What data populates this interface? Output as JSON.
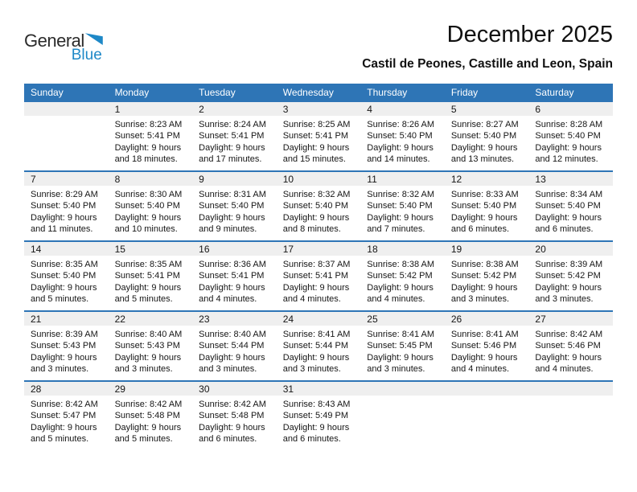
{
  "logo": {
    "word1": "General",
    "word2": "Blue"
  },
  "header": {
    "title": "December 2025",
    "subtitle": "Castil de Peones, Castille and Leon, Spain"
  },
  "colors": {
    "header_bar": "#2E75B6",
    "week_divider": "#2E75B6",
    "day_strip": "#EFEFEF",
    "logo_blue": "#1E88C7",
    "text": "#1A1A1A"
  },
  "calendar": {
    "day_headers": [
      "Sunday",
      "Monday",
      "Tuesday",
      "Wednesday",
      "Thursday",
      "Friday",
      "Saturday"
    ],
    "weeks": [
      [
        null,
        {
          "day": "1",
          "lines": [
            "Sunrise: 8:23 AM",
            "Sunset: 5:41 PM",
            "Daylight: 9 hours",
            "and 18 minutes."
          ]
        },
        {
          "day": "2",
          "lines": [
            "Sunrise: 8:24 AM",
            "Sunset: 5:41 PM",
            "Daylight: 9 hours",
            "and 17 minutes."
          ]
        },
        {
          "day": "3",
          "lines": [
            "Sunrise: 8:25 AM",
            "Sunset: 5:41 PM",
            "Daylight: 9 hours",
            "and 15 minutes."
          ]
        },
        {
          "day": "4",
          "lines": [
            "Sunrise: 8:26 AM",
            "Sunset: 5:40 PM",
            "Daylight: 9 hours",
            "and 14 minutes."
          ]
        },
        {
          "day": "5",
          "lines": [
            "Sunrise: 8:27 AM",
            "Sunset: 5:40 PM",
            "Daylight: 9 hours",
            "and 13 minutes."
          ]
        },
        {
          "day": "6",
          "lines": [
            "Sunrise: 8:28 AM",
            "Sunset: 5:40 PM",
            "Daylight: 9 hours",
            "and 12 minutes."
          ]
        }
      ],
      [
        {
          "day": "7",
          "lines": [
            "Sunrise: 8:29 AM",
            "Sunset: 5:40 PM",
            "Daylight: 9 hours",
            "and 11 minutes."
          ]
        },
        {
          "day": "8",
          "lines": [
            "Sunrise: 8:30 AM",
            "Sunset: 5:40 PM",
            "Daylight: 9 hours",
            "and 10 minutes."
          ]
        },
        {
          "day": "9",
          "lines": [
            "Sunrise: 8:31 AM",
            "Sunset: 5:40 PM",
            "Daylight: 9 hours",
            "and 9 minutes."
          ]
        },
        {
          "day": "10",
          "lines": [
            "Sunrise: 8:32 AM",
            "Sunset: 5:40 PM",
            "Daylight: 9 hours",
            "and 8 minutes."
          ]
        },
        {
          "day": "11",
          "lines": [
            "Sunrise: 8:32 AM",
            "Sunset: 5:40 PM",
            "Daylight: 9 hours",
            "and 7 minutes."
          ]
        },
        {
          "day": "12",
          "lines": [
            "Sunrise: 8:33 AM",
            "Sunset: 5:40 PM",
            "Daylight: 9 hours",
            "and 6 minutes."
          ]
        },
        {
          "day": "13",
          "lines": [
            "Sunrise: 8:34 AM",
            "Sunset: 5:40 PM",
            "Daylight: 9 hours",
            "and 6 minutes."
          ]
        }
      ],
      [
        {
          "day": "14",
          "lines": [
            "Sunrise: 8:35 AM",
            "Sunset: 5:40 PM",
            "Daylight: 9 hours",
            "and 5 minutes."
          ]
        },
        {
          "day": "15",
          "lines": [
            "Sunrise: 8:35 AM",
            "Sunset: 5:41 PM",
            "Daylight: 9 hours",
            "and 5 minutes."
          ]
        },
        {
          "day": "16",
          "lines": [
            "Sunrise: 8:36 AM",
            "Sunset: 5:41 PM",
            "Daylight: 9 hours",
            "and 4 minutes."
          ]
        },
        {
          "day": "17",
          "lines": [
            "Sunrise: 8:37 AM",
            "Sunset: 5:41 PM",
            "Daylight: 9 hours",
            "and 4 minutes."
          ]
        },
        {
          "day": "18",
          "lines": [
            "Sunrise: 8:38 AM",
            "Sunset: 5:42 PM",
            "Daylight: 9 hours",
            "and 4 minutes."
          ]
        },
        {
          "day": "19",
          "lines": [
            "Sunrise: 8:38 AM",
            "Sunset: 5:42 PM",
            "Daylight: 9 hours",
            "and 3 minutes."
          ]
        },
        {
          "day": "20",
          "lines": [
            "Sunrise: 8:39 AM",
            "Sunset: 5:42 PM",
            "Daylight: 9 hours",
            "and 3 minutes."
          ]
        }
      ],
      [
        {
          "day": "21",
          "lines": [
            "Sunrise: 8:39 AM",
            "Sunset: 5:43 PM",
            "Daylight: 9 hours",
            "and 3 minutes."
          ]
        },
        {
          "day": "22",
          "lines": [
            "Sunrise: 8:40 AM",
            "Sunset: 5:43 PM",
            "Daylight: 9 hours",
            "and 3 minutes."
          ]
        },
        {
          "day": "23",
          "lines": [
            "Sunrise: 8:40 AM",
            "Sunset: 5:44 PM",
            "Daylight: 9 hours",
            "and 3 minutes."
          ]
        },
        {
          "day": "24",
          "lines": [
            "Sunrise: 8:41 AM",
            "Sunset: 5:44 PM",
            "Daylight: 9 hours",
            "and 3 minutes."
          ]
        },
        {
          "day": "25",
          "lines": [
            "Sunrise: 8:41 AM",
            "Sunset: 5:45 PM",
            "Daylight: 9 hours",
            "and 3 minutes."
          ]
        },
        {
          "day": "26",
          "lines": [
            "Sunrise: 8:41 AM",
            "Sunset: 5:46 PM",
            "Daylight: 9 hours",
            "and 4 minutes."
          ]
        },
        {
          "day": "27",
          "lines": [
            "Sunrise: 8:42 AM",
            "Sunset: 5:46 PM",
            "Daylight: 9 hours",
            "and 4 minutes."
          ]
        }
      ],
      [
        {
          "day": "28",
          "lines": [
            "Sunrise: 8:42 AM",
            "Sunset: 5:47 PM",
            "Daylight: 9 hours",
            "and 5 minutes."
          ]
        },
        {
          "day": "29",
          "lines": [
            "Sunrise: 8:42 AM",
            "Sunset: 5:48 PM",
            "Daylight: 9 hours",
            "and 5 minutes."
          ]
        },
        {
          "day": "30",
          "lines": [
            "Sunrise: 8:42 AM",
            "Sunset: 5:48 PM",
            "Daylight: 9 hours",
            "and 6 minutes."
          ]
        },
        {
          "day": "31",
          "lines": [
            "Sunrise: 8:43 AM",
            "Sunset: 5:49 PM",
            "Daylight: 9 hours",
            "and 6 minutes."
          ]
        },
        null,
        null,
        null
      ]
    ]
  }
}
